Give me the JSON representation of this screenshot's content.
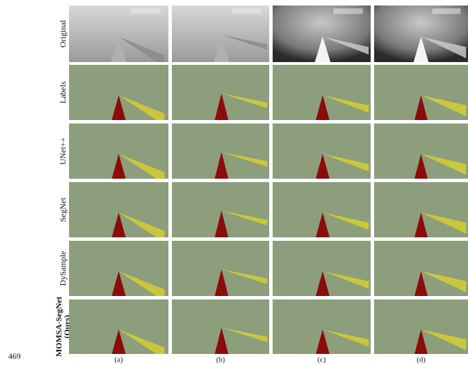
{
  "line_number": "469",
  "rows": [
    [
      "Original"
    ],
    [
      "Labels"
    ],
    [
      "UNet++"
    ],
    [
      "SegNet"
    ],
    [
      "DySample"
    ],
    [
      "MOMSA-SegNet",
      "(Ours)"
    ]
  ],
  "columns": [
    "(a)",
    "(b)",
    "(c)",
    "(d)"
  ]
}
